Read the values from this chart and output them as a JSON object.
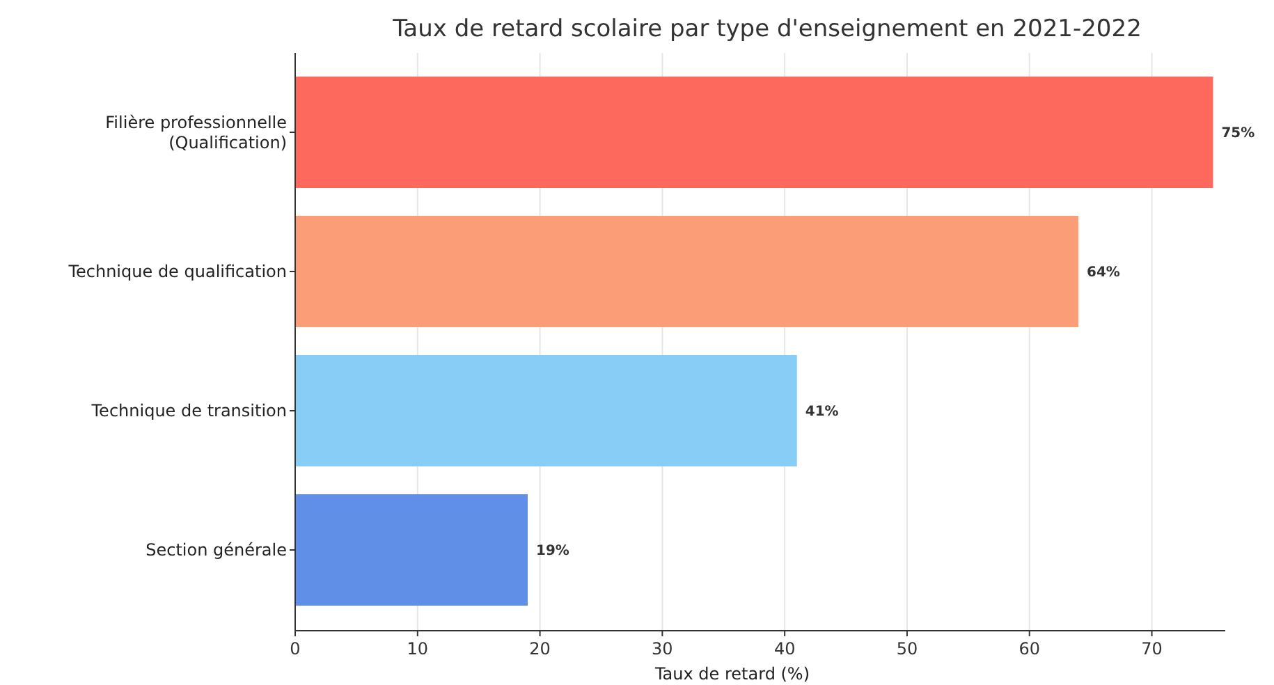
{
  "chart_data": {
    "type": "bar",
    "orientation": "horizontal",
    "title": "Taux de retard scolaire par type d'enseignement en 2021-2022",
    "xlabel": "Taux de retard (%)",
    "categories": [
      "Filière professionnelle\n(Qualification)",
      "Technique de qualification",
      "Technique de transition",
      "Section générale"
    ],
    "values": [
      75,
      64,
      41,
      19
    ],
    "colors": [
      "#fd695d",
      "#fb9e78",
      "#88cdf6",
      "#5f8fe7"
    ],
    "value_labels": [
      "75%",
      "64%",
      "41%",
      "19%"
    ],
    "xlim": [
      0,
      76
    ],
    "xticks": [
      0,
      10,
      20,
      30,
      40,
      50,
      60,
      70
    ],
    "grid": "x"
  }
}
